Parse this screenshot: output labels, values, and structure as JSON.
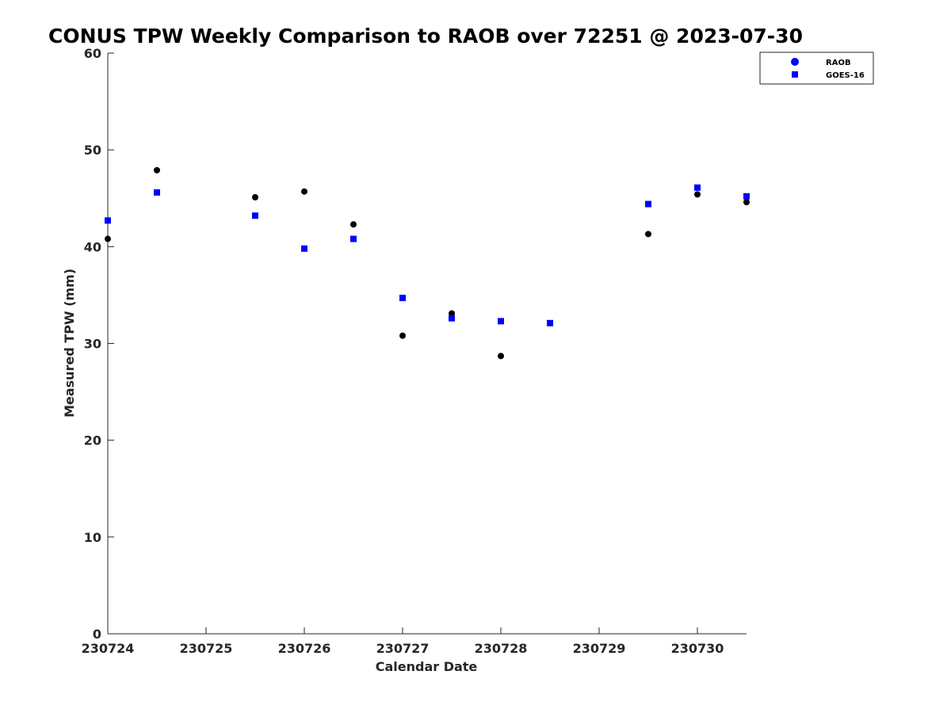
{
  "chart_data": {
    "type": "scatter",
    "title": "CONUS TPW Weekly Comparison to RAOB over 72251 @ 2023-07-30",
    "xlabel": "Calendar Date",
    "ylabel": "Measured TPW (mm)",
    "x_tick_labels": [
      "230724",
      "230725",
      "230726",
      "230727",
      "230728",
      "230729",
      "230730"
    ],
    "y_ticks": [
      0,
      10,
      20,
      30,
      40,
      50,
      60
    ],
    "xlim": [
      0,
      6.5
    ],
    "ylim": [
      0,
      60
    ],
    "grid": false,
    "legend_position": "top-right",
    "series": [
      {
        "name": "RAOB",
        "marker": "circle",
        "color": "#000000",
        "legend_color": "#0000ff",
        "x": [
          0,
          0.5,
          1.5,
          2,
          2.5,
          3,
          3.5,
          4,
          5.5,
          6,
          6.5
        ],
        "values": [
          40.8,
          47.9,
          45.1,
          45.7,
          42.3,
          30.8,
          33.1,
          28.7,
          41.3,
          45.4,
          44.6
        ]
      },
      {
        "name": "GOES-16",
        "marker": "square",
        "color": "#0000ff",
        "legend_color": "#0000ff",
        "x": [
          0,
          0.5,
          1.5,
          2,
          2.5,
          3,
          3.5,
          4,
          4.5,
          5.5,
          6,
          6.5
        ],
        "values": [
          42.7,
          45.6,
          43.2,
          39.8,
          40.8,
          34.7,
          32.6,
          32.3,
          32.1,
          44.4,
          46.1,
          45.2
        ]
      }
    ]
  }
}
